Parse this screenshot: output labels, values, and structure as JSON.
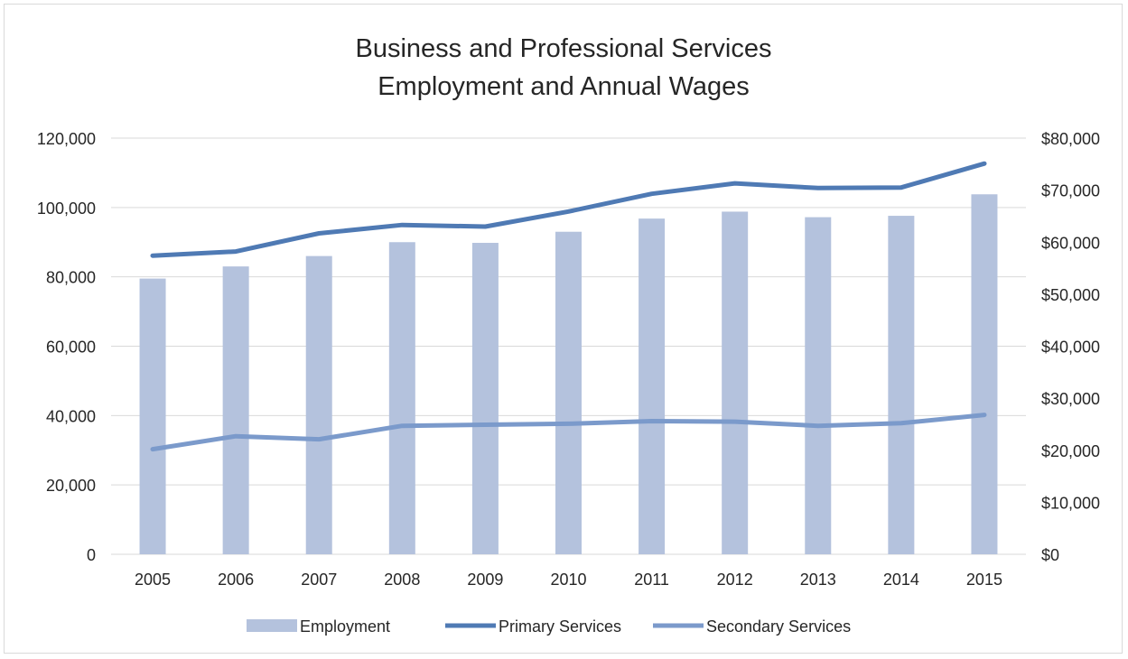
{
  "chart_data": {
    "type": "bar",
    "title": [
      "Business and Professional Services",
      "Employment and Annual Wages"
    ],
    "categories": [
      "2005",
      "2006",
      "2007",
      "2008",
      "2009",
      "2010",
      "2011",
      "2012",
      "2013",
      "2014",
      "2015"
    ],
    "y_left": {
      "ylim": [
        0,
        120000
      ],
      "ticks": [
        0,
        20000,
        40000,
        60000,
        80000,
        100000,
        120000
      ],
      "tick_labels": [
        "0",
        "20,000",
        "40,000",
        "60,000",
        "80,000",
        "100,000",
        "120,000"
      ]
    },
    "y_right": {
      "ylim": [
        0,
        80000
      ],
      "ticks": [
        0,
        10000,
        20000,
        30000,
        40000,
        50000,
        60000,
        70000,
        80000
      ],
      "tick_labels": [
        "$0",
        "$10,000",
        "$20,000",
        "$30,000",
        "$40,000",
        "$50,000",
        "$60,000",
        "$70,000",
        "$80,000"
      ]
    },
    "series": [
      {
        "name": "Employment",
        "type": "bar",
        "axis": "left",
        "color": "#b4c2dd",
        "values": [
          79500,
          83000,
          86000,
          90000,
          89800,
          93000,
          96800,
          98800,
          97200,
          97600,
          103800
        ]
      },
      {
        "name": "Primary Services",
        "type": "line",
        "axis": "right",
        "color": "#4f7ab4",
        "values": [
          57400,
          58200,
          61700,
          63300,
          63000,
          65900,
          69300,
          71300,
          70400,
          70500,
          75100
        ]
      },
      {
        "name": "Secondary Services",
        "type": "line",
        "axis": "right",
        "color": "#7b9acb",
        "values": [
          20200,
          22700,
          22100,
          24700,
          24900,
          25100,
          25600,
          25500,
          24700,
          25200,
          26800
        ]
      }
    ],
    "grid": true,
    "legend": "bottom"
  }
}
